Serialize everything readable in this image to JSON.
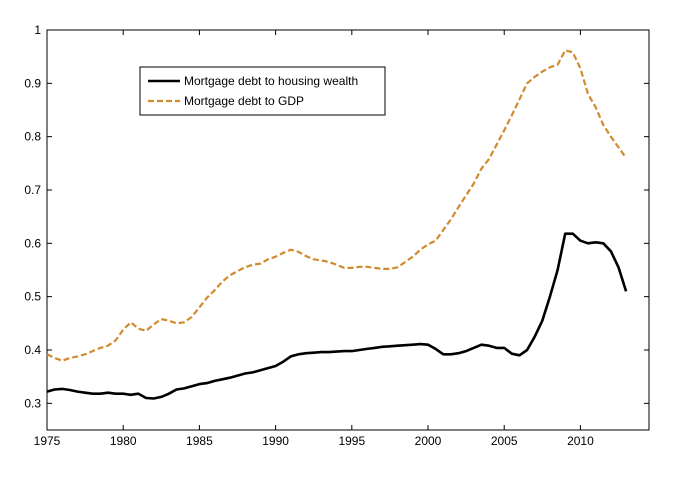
{
  "chart_data": {
    "type": "line",
    "title": "",
    "xlabel": "",
    "ylabel": "",
    "xlim": [
      1975,
      2014.5
    ],
    "ylim": [
      0.25,
      1.0
    ],
    "x_ticks": [
      1975,
      1980,
      1985,
      1990,
      1995,
      2000,
      2005,
      2010
    ],
    "y_ticks": [
      0.3,
      0.4,
      0.5,
      0.6,
      0.7,
      0.8,
      0.9,
      1.0
    ],
    "x_tick_labels": [
      "1975",
      "1980",
      "1985",
      "1990",
      "1995",
      "2000",
      "2005",
      "2010"
    ],
    "y_tick_labels": [
      "0.3",
      "0.4",
      "0.5",
      "0.6",
      "0.7",
      "0.8",
      "0.9",
      "1"
    ],
    "grid": false,
    "legend_position": "top-left",
    "series": [
      {
        "name": "Mortgage debt to housing wealth",
        "color": "#000000",
        "style": "solid",
        "x": [
          1975,
          1975.5,
          1976,
          1976.5,
          1977,
          1977.5,
          1978,
          1978.5,
          1979,
          1979.5,
          1980,
          1980.5,
          1981,
          1981.5,
          1982,
          1982.5,
          1983,
          1983.5,
          1984,
          1984.5,
          1985,
          1985.5,
          1986,
          1986.5,
          1987,
          1987.5,
          1988,
          1988.5,
          1989,
          1989.5,
          1990,
          1990.5,
          1991,
          1991.5,
          1992,
          1992.5,
          1993,
          1993.5,
          1994,
          1994.5,
          1995,
          1995.5,
          1996,
          1996.5,
          1997,
          1997.5,
          1998,
          1998.5,
          1999,
          1999.5,
          2000,
          2000.5,
          2001,
          2001.5,
          2002,
          2002.5,
          2003,
          2003.5,
          2004,
          2004.5,
          2005,
          2005.5,
          2006,
          2006.5,
          2007,
          2007.5,
          2008,
          2008.5,
          2009,
          2009.5,
          2010,
          2010.5,
          2011,
          2011.5,
          2012,
          2012.5,
          2013
        ],
        "values": [
          0.322,
          0.326,
          0.327,
          0.325,
          0.322,
          0.32,
          0.318,
          0.318,
          0.32,
          0.318,
          0.318,
          0.316,
          0.318,
          0.31,
          0.309,
          0.312,
          0.318,
          0.326,
          0.328,
          0.332,
          0.336,
          0.338,
          0.342,
          0.345,
          0.348,
          0.352,
          0.356,
          0.358,
          0.362,
          0.366,
          0.37,
          0.378,
          0.388,
          0.392,
          0.394,
          0.395,
          0.396,
          0.396,
          0.397,
          0.398,
          0.398,
          0.4,
          0.402,
          0.404,
          0.406,
          0.407,
          0.408,
          0.409,
          0.41,
          0.411,
          0.41,
          0.402,
          0.392,
          0.392,
          0.394,
          0.398,
          0.404,
          0.41,
          0.408,
          0.404,
          0.404,
          0.393,
          0.39,
          0.4,
          0.425,
          0.455,
          0.5,
          0.55,
          0.618,
          0.618,
          0.605,
          0.6,
          0.602,
          0.6,
          0.585,
          0.555,
          0.51
        ]
      },
      {
        "name": "Mortgage debt to GDP",
        "color": "#d28a2e",
        "style": "dashed",
        "x": [
          1975,
          1975.5,
          1976,
          1976.5,
          1977,
          1977.5,
          1978,
          1978.5,
          1979,
          1979.5,
          1980,
          1980.5,
          1981,
          1981.5,
          1982,
          1982.5,
          1983,
          1983.5,
          1984,
          1984.5,
          1985,
          1985.5,
          1986,
          1986.5,
          1987,
          1987.5,
          1988,
          1988.5,
          1989,
          1989.5,
          1990,
          1990.5,
          1991,
          1991.5,
          1992,
          1992.5,
          1993,
          1993.5,
          1994,
          1994.5,
          1995,
          1995.5,
          1996,
          1996.5,
          1997,
          1997.5,
          1998,
          1998.5,
          1999,
          1999.5,
          2000,
          2000.5,
          2001,
          2001.5,
          2002,
          2002.5,
          2003,
          2003.5,
          2004,
          2004.5,
          2005,
          2005.5,
          2006,
          2006.5,
          2007,
          2007.5,
          2008,
          2008.5,
          2009,
          2009.5,
          2010,
          2010.5,
          2011,
          2011.5,
          2012,
          2012.5,
          2013
        ],
        "values": [
          0.392,
          0.385,
          0.38,
          0.385,
          0.388,
          0.392,
          0.398,
          0.404,
          0.408,
          0.418,
          0.438,
          0.452,
          0.44,
          0.436,
          0.448,
          0.458,
          0.455,
          0.45,
          0.452,
          0.462,
          0.48,
          0.498,
          0.512,
          0.528,
          0.54,
          0.548,
          0.555,
          0.56,
          0.562,
          0.57,
          0.575,
          0.582,
          0.588,
          0.584,
          0.576,
          0.57,
          0.568,
          0.565,
          0.56,
          0.554,
          0.554,
          0.556,
          0.556,
          0.554,
          0.552,
          0.552,
          0.555,
          0.565,
          0.575,
          0.588,
          0.598,
          0.605,
          0.625,
          0.645,
          0.668,
          0.69,
          0.712,
          0.74,
          0.758,
          0.785,
          0.812,
          0.84,
          0.87,
          0.9,
          0.912,
          0.922,
          0.93,
          0.935,
          0.962,
          0.958,
          0.928,
          0.88,
          0.855,
          0.822,
          0.8,
          0.78,
          0.76
        ]
      }
    ]
  }
}
